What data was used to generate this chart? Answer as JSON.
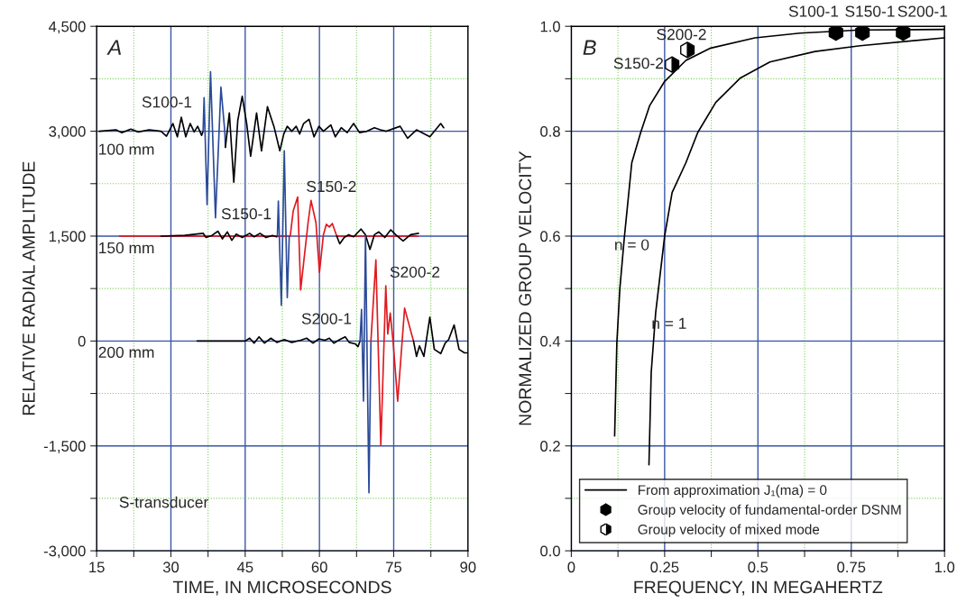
{
  "chart_data": [
    {
      "type": "line",
      "title": "A",
      "xlabel": "TIME, IN MICROSECONDS",
      "ylabel": "RELATIVE RADIAL AMPLITUDE",
      "xlim": [
        15,
        90
      ],
      "xticks": [
        15,
        {
          "value": 22.5,
          "label": null
        },
        30,
        {
          "value": 37.5,
          "label": null
        },
        45,
        {
          "value": 52.5,
          "label": null
        },
        60,
        {
          "value": 67.5,
          "label": null
        },
        75,
        {
          "value": 82.5,
          "label": null
        },
        90
      ],
      "ylim": [
        -3000,
        4500
      ],
      "yticks": [
        {
          "value": -3000,
          "label": "-3,000"
        },
        {
          "value": -2250,
          "label": null
        },
        {
          "value": -1500,
          "label": "-1,500"
        },
        {
          "value": -750,
          "label": null
        },
        0,
        {
          "value": 750,
          "label": null
        },
        {
          "value": 1500,
          "label": "1,500"
        },
        {
          "value": 2250,
          "label": null
        },
        {
          "value": 3000,
          "label": "3,000"
        },
        {
          "value": 3750,
          "label": null
        },
        {
          "value": 4500,
          "label": "4,500"
        }
      ],
      "grid": true,
      "legend": false,
      "annotations": [
        "S100-1",
        "100 mm",
        "S150-1",
        "S150-2",
        "150 mm",
        "S200-1",
        "S200-2",
        "200 mm",
        "S-transducer"
      ],
      "series": [
        {
          "color": "#000000",
          "x": [
            15.5,
            18.9,
            20.1,
            21.9,
            23.4,
            25.6,
            28.0,
            29.1,
            30.4,
            31.3,
            32.1,
            33.0,
            33.9,
            34.7,
            35.4,
            36.2,
            36.5
          ],
          "values": [
            3000,
            3020,
            2980,
            3030,
            2990,
            3020,
            3000,
            2930,
            3110,
            2920,
            3200,
            2920,
            3110,
            2990,
            3070,
            2940,
            3000
          ]
        },
        {
          "color": "#2b4a9a",
          "x": [
            36.5,
            36.7,
            37.3,
            38.0,
            39.0,
            40.1,
            40.9,
            41.0
          ],
          "values": [
            3000,
            3480,
            1950,
            3850,
            1760,
            3630,
            2980,
            2770
          ]
        },
        {
          "color": "#000000",
          "x": [
            41.0,
            41.8,
            42.7,
            43.5,
            44.4,
            45.3,
            46.1,
            47.3,
            48.3,
            49.5,
            50.8,
            52.0,
            52.8,
            53.5,
            54.4,
            55.3,
            56.0,
            56.8,
            57.9,
            58.9,
            59.9,
            60.8,
            62.3,
            63.2,
            64.4,
            65.6,
            66.9,
            68.1,
            69.6,
            71.1,
            72.3,
            73.5,
            76.3,
            77.8,
            79.6,
            82.3,
            84.5,
            85.1
          ],
          "values": [
            2770,
            3260,
            2270,
            3150,
            3500,
            3110,
            2640,
            3260,
            2720,
            3350,
            3070,
            2720,
            2960,
            3070,
            3000,
            3070,
            2960,
            3110,
            3170,
            2920,
            3070,
            3000,
            3090,
            2920,
            3050,
            2980,
            3110,
            2980,
            3000,
            3050,
            3020,
            3000,
            3070,
            2900,
            3020,
            2920,
            3110,
            3050
          ]
        },
        {
          "color": "#e0191f",
          "x": [
            19.6,
            54.1,
            54.7,
            55.6,
            56.2,
            57.7,
            58.3,
            59.3,
            60.0,
            60.8,
            61.4,
            62.0,
            62.6,
            63.5,
            79.9
          ],
          "values": [
            1500,
            1500,
            1860,
            2060,
            730,
            1690,
            2010,
            1690,
            980,
            1520,
            1670,
            1630,
            1680,
            1500,
            1500
          ]
        },
        {
          "color": "#000000",
          "x": [
            28.0,
            32.8,
            36.5,
            37.1,
            38.3,
            39.5,
            40.4,
            41.4,
            42.3,
            43.2,
            44.4,
            45.9,
            46.8,
            48.0,
            49.2,
            50.5,
            51.4,
            51.5
          ],
          "values": [
            1500,
            1510,
            1540,
            1480,
            1510,
            1570,
            1460,
            1560,
            1440,
            1530,
            1480,
            1540,
            1490,
            1540,
            1480,
            1510,
            1490,
            1500
          ]
        },
        {
          "color": "#2b4a9a",
          "x": [
            51.5,
            51.7,
            52.3,
            52.9,
            53.5,
            53.9
          ],
          "values": [
            1500,
            2000,
            510,
            2720,
            620,
            1500
          ]
        },
        {
          "color": "#000000",
          "x": [
            63.5,
            64.1,
            65.0,
            65.9,
            66.9,
            68.4,
            69.3,
            70.2,
            71.1,
            72.0,
            73.2,
            74.4,
            75.4,
            76.9,
            78.4,
            80.0
          ],
          "values": [
            1500,
            1390,
            1480,
            1520,
            1490,
            1600,
            1520,
            1310,
            1520,
            1560,
            1480,
            1590,
            1520,
            1430,
            1520,
            1540
          ]
        },
        {
          "color": "#000000",
          "x": [
            35.3,
            38.0,
            41.0,
            45.0,
            45.9,
            46.8,
            47.8,
            48.9,
            50.2,
            51.4,
            52.9,
            54.4,
            56.2,
            57.4,
            58.7,
            59.9,
            61.1,
            62.0,
            62.9,
            64.1,
            65.2,
            66.0,
            67.2,
            67.8,
            68.2
          ],
          "values": [
            0,
            0,
            0,
            0,
            40,
            -30,
            60,
            -30,
            40,
            -20,
            20,
            -20,
            10,
            40,
            -30,
            30,
            10,
            40,
            -30,
            20,
            60,
            -20,
            -40,
            -80,
            0
          ]
        },
        {
          "color": "#2b4a9a",
          "x": [
            68.2,
            68.5,
            68.9,
            69.3,
            70.0,
            70.4
          ],
          "values": [
            0,
            450,
            -860,
            1500,
            -2170,
            0
          ]
        },
        {
          "color": "#e0191f",
          "x": [
            70.4,
            71.4,
            72.4,
            73.4,
            73.8,
            74.3,
            74.9,
            75.8,
            77.2,
            78.6,
            79.0
          ],
          "values": [
            0,
            1160,
            -1490,
            790,
            100,
            400,
            -30,
            -860,
            470,
            100,
            0
          ]
        },
        {
          "color": "#000000",
          "x": [
            79.0,
            79.6,
            80.2,
            81.1,
            82.3,
            83.2,
            84.5,
            85.4,
            86.1,
            87.2,
            88.2,
            89.3,
            90.0
          ],
          "values": [
            0,
            -220,
            -70,
            -220,
            340,
            -120,
            -180,
            -30,
            20,
            230,
            -120,
            -170,
            -170
          ]
        }
      ]
    },
    {
      "type": "line",
      "title": "B",
      "xlabel": "FREQUENCY, IN MEGAHERTZ",
      "ylabel": "NORMALIZED GROUP VELOCITY",
      "xlim": [
        0,
        1
      ],
      "xticks": [
        0,
        {
          "value": 0.125,
          "label": null
        },
        0.25,
        {
          "value": 0.375,
          "label": null
        },
        0.5,
        {
          "value": 0.625,
          "label": null
        },
        0.75,
        {
          "value": 0.875,
          "label": null
        },
        {
          "value": 1,
          "label": "1.0"
        }
      ],
      "ylim": [
        0,
        1
      ],
      "yticks": [
        {
          "value": 0,
          "label": "0.0"
        },
        {
          "value": 0.1,
          "label": null
        },
        0.2,
        {
          "value": 0.3,
          "label": null
        },
        0.4,
        {
          "value": 0.5,
          "label": null
        },
        0.6,
        {
          "value": 0.7,
          "label": null
        },
        0.8,
        {
          "value": 0.9,
          "label": null
        },
        {
          "value": 1,
          "label": "1.0"
        }
      ],
      "grid": true,
      "legend": "bottom left",
      "annotations": [
        "n = 0",
        "n = 1",
        "S100-1",
        "S150-1",
        "S200-1",
        "S200-2",
        "S150-2"
      ],
      "series": [
        {
          "name": "From approximation J₁(ma) = 0",
          "color": "#000000",
          "x": [
            0.116,
            0.122,
            0.13,
            0.142,
            0.162,
            0.186,
            0.21,
            0.25,
            0.307,
            0.371,
            0.492,
            0.613,
            0.774,
            0.999
          ],
          "values": [
            0.219,
            0.397,
            0.5,
            0.597,
            0.74,
            0.798,
            0.849,
            0.895,
            0.935,
            0.958,
            0.978,
            0.987,
            0.993,
            0.994
          ]
        },
        {
          "color": "#000000",
          "x": [
            0.208,
            0.214,
            0.226,
            0.25,
            0.27,
            0.307,
            0.339,
            0.387,
            0.452,
            0.532,
            0.653,
            0.774,
            0.999
          ],
          "values": [
            0.164,
            0.34,
            0.454,
            0.6,
            0.683,
            0.74,
            0.798,
            0.855,
            0.901,
            0.932,
            0.952,
            0.963,
            0.978
          ]
        },
        {
          "name": "Group velocity of fundamental-order DSNM",
          "type": "scatter",
          "color": "#000000",
          "x": [
            0.709,
            0.78,
            0.889
          ],
          "values": [
            0.988,
            0.988,
            0.988
          ]
        },
        {
          "name": "Group velocity of mixed mode",
          "type": "scatter",
          "color": "#000000",
          "x": [
            0.311,
            0.27
          ],
          "values": [
            0.955,
            0.927
          ]
        }
      ]
    }
  ]
}
